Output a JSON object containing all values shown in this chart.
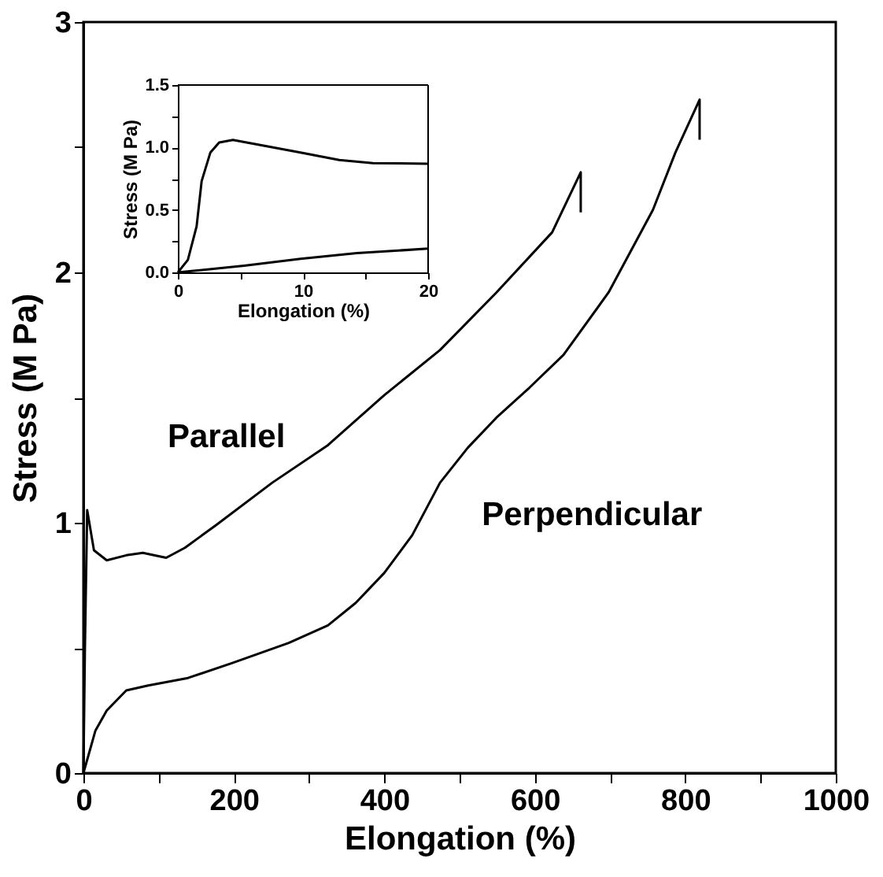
{
  "chart_data": [
    {
      "type": "line",
      "xlabel": "Elongation (%)",
      "ylabel": "Stress (M Pa)",
      "xlim": [
        0,
        1000
      ],
      "ylim": [
        0,
        3
      ],
      "xticks": [
        0,
        {
          "value": 100,
          "label": null
        },
        200,
        {
          "value": 300,
          "label": null
        },
        400,
        {
          "value": 500,
          "label": null
        },
        600,
        {
          "value": 700,
          "label": null
        },
        800,
        {
          "value": 900,
          "label": null
        },
        1000
      ],
      "yticks": [
        0,
        {
          "value": 0.5,
          "label": null
        },
        1,
        {
          "value": 1.5,
          "label": null
        },
        2,
        {
          "value": 2.5,
          "label": null
        },
        3
      ],
      "grid": false,
      "legend": false,
      "marker": "none",
      "line_style": "solid",
      "series": [
        {
          "name": "Parallel",
          "color": "#000000",
          "x": [
            0,
            2,
            5,
            14,
            31,
            57,
            79,
            110,
            135,
            176,
            251,
            325,
            400,
            474,
            549,
            623,
            661,
            661
          ],
          "values": [
            0,
            0.5,
            1.05,
            0.89,
            0.85,
            0.87,
            0.88,
            0.86,
            0.9,
            0.99,
            1.16,
            1.31,
            1.51,
            1.69,
            1.92,
            2.16,
            2.4,
            2.24
          ]
        },
        {
          "name": "Perpendicular",
          "color": "#000000",
          "x": [
            0,
            16,
            31,
            57,
            86,
            139,
            198,
            273,
            325,
            362,
            400,
            437,
            474,
            511,
            549,
            593,
            638,
            698,
            757,
            787,
            819,
            819
          ],
          "values": [
            0,
            0.17,
            0.25,
            0.33,
            0.35,
            0.38,
            0.44,
            0.52,
            0.59,
            0.68,
            0.8,
            0.95,
            1.16,
            1.3,
            1.42,
            1.54,
            1.67,
            1.92,
            2.25,
            2.48,
            2.69,
            2.53
          ]
        }
      ]
    },
    {
      "type": "line",
      "xlabel": "Elongation (%)",
      "ylabel": "Stress (M Pa)",
      "xlim": [
        0,
        20
      ],
      "ylim": [
        0,
        1.5
      ],
      "xticks": [
        0,
        {
          "value": 5,
          "label": null
        },
        10,
        {
          "value": 15,
          "label": null
        },
        20
      ],
      "yticks": [
        {
          "value": 0,
          "label": "0.0"
        },
        {
          "value": 0.25,
          "label": null
        },
        {
          "value": 0.5,
          "label": "0.5"
        },
        {
          "value": 0.75,
          "label": null
        },
        {
          "value": 1,
          "label": "1.0"
        },
        {
          "value": 1.25,
          "label": null
        },
        {
          "value": 1.5,
          "label": "1.5"
        }
      ],
      "grid": false,
      "legend": false,
      "marker": "none",
      "line_style": "solid",
      "series": [
        {
          "color": "#000000",
          "x": [
            0,
            0.8,
            1.5,
            1.9,
            2.6,
            3.3,
            4.4,
            6.6,
            9.8,
            12.9,
            15.6,
            20
          ],
          "values": [
            0,
            0.1,
            0.37,
            0.73,
            0.96,
            1.04,
            1.06,
            1.02,
            0.96,
            0.9,
            0.875,
            0.87
          ]
        },
        {
          "color": "#000000",
          "x": [
            0,
            5.3,
            9.8,
            14.3,
            20
          ],
          "values": [
            0,
            0.054,
            0.108,
            0.154,
            0.19
          ]
        }
      ]
    }
  ]
}
